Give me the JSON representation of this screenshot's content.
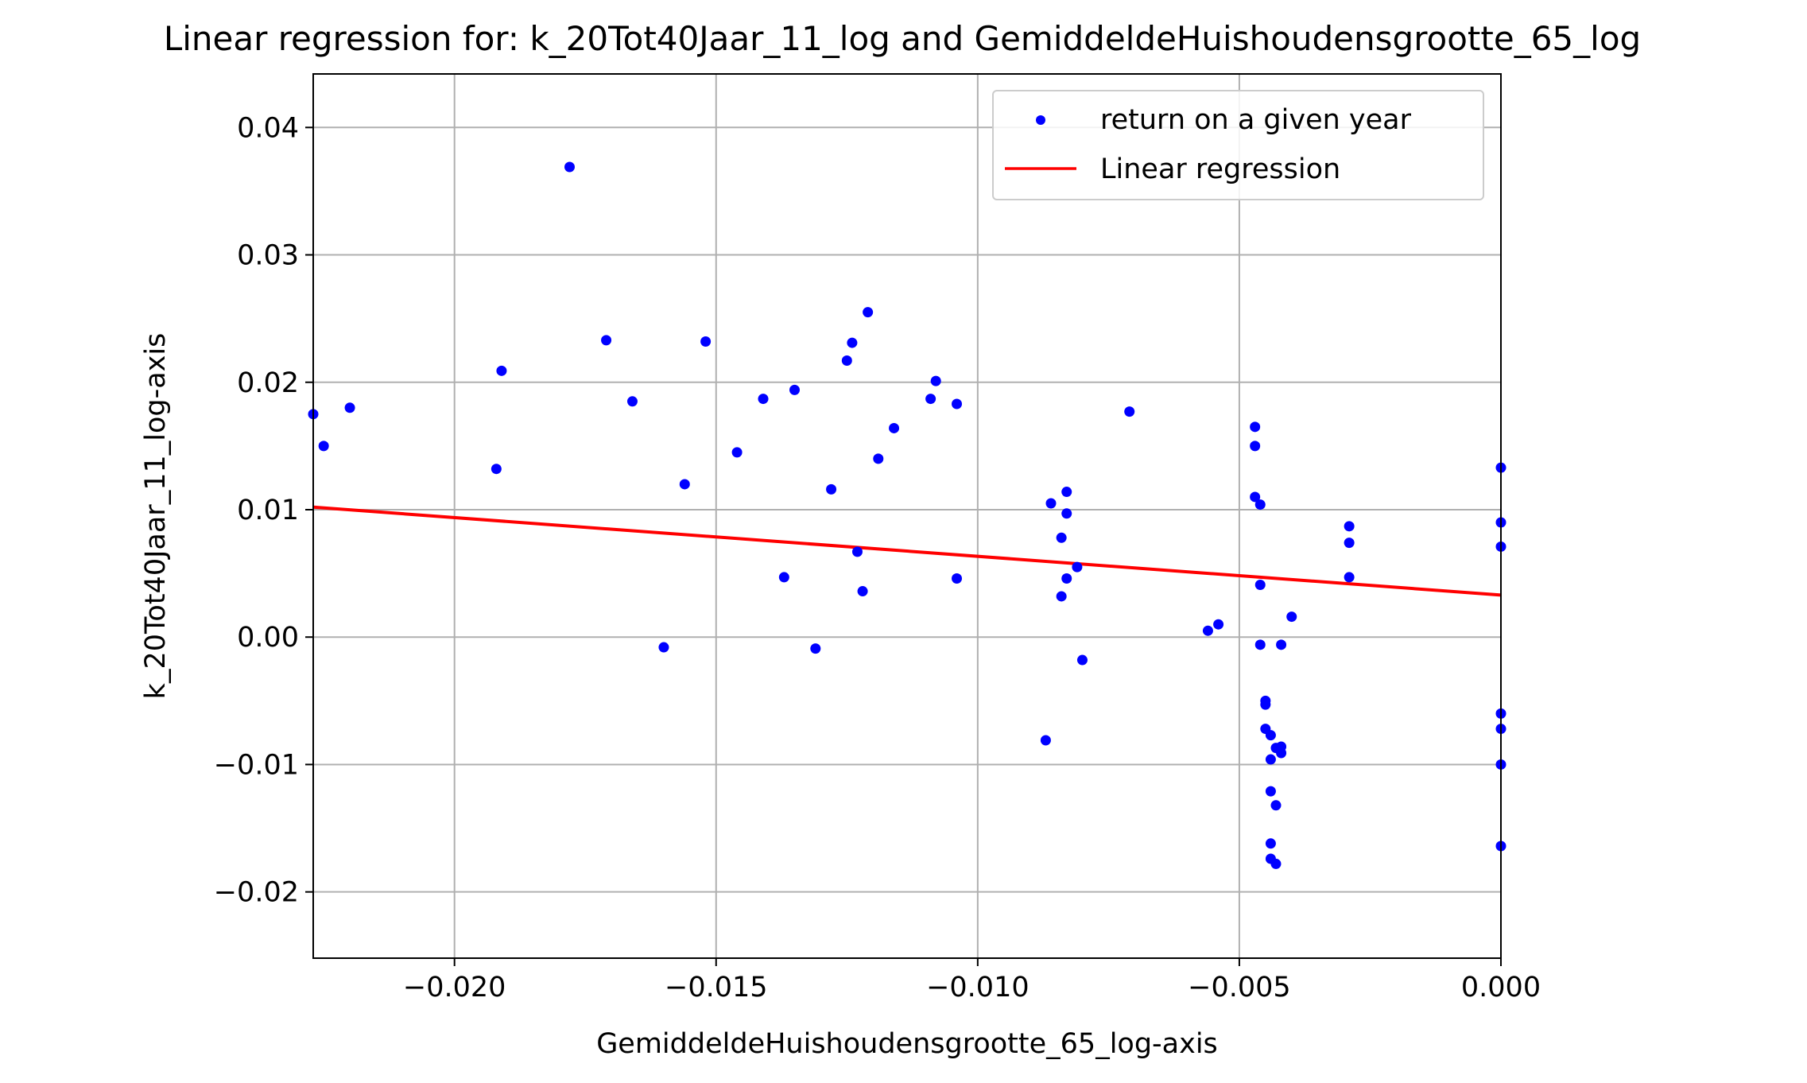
{
  "chart_data": {
    "type": "scatter",
    "title": "Linear regression for: k_20Tot40Jaar_11_log and GemiddeldeHuishoudensgrootte_65_log",
    "xlabel": "GemiddeldeHuishoudensgrootte_65_log-axis",
    "ylabel": "k_20Tot40Jaar_11_log-axis",
    "xlim": [
      -0.0227,
      0.0
    ],
    "ylim": [
      -0.0252,
      0.0442
    ],
    "x_ticks": [
      -0.02,
      -0.015,
      -0.01,
      -0.005,
      0.0
    ],
    "x_tick_labels": [
      "−0.020",
      "−0.015",
      "−0.010",
      "−0.005",
      "0.000"
    ],
    "y_ticks": [
      -0.02,
      -0.01,
      0.0,
      0.01,
      0.02,
      0.03,
      0.04
    ],
    "y_tick_labels": [
      "−0.02",
      "−0.01",
      "0.00",
      "0.01",
      "0.02",
      "0.03",
      "0.04"
    ],
    "grid": true,
    "legend_position": "top-right",
    "series": [
      {
        "name": "return on a given year",
        "kind": "scatter",
        "color": "#0000ff",
        "points": [
          [
            -0.0227,
            0.0175
          ],
          [
            -0.0225,
            0.015
          ],
          [
            -0.022,
            0.018
          ],
          [
            -0.0192,
            0.0132
          ],
          [
            -0.0191,
            0.0209
          ],
          [
            -0.0178,
            0.0369
          ],
          [
            -0.0171,
            0.0233
          ],
          [
            -0.0166,
            0.0185
          ],
          [
            -0.016,
            -0.0008
          ],
          [
            -0.0156,
            0.012
          ],
          [
            -0.0152,
            0.0232
          ],
          [
            -0.0146,
            0.0145
          ],
          [
            -0.0141,
            0.0187
          ],
          [
            -0.0137,
            0.0047
          ],
          [
            -0.0135,
            0.0194
          ],
          [
            -0.0131,
            -0.0009
          ],
          [
            -0.0128,
            0.0116
          ],
          [
            -0.0125,
            0.0217
          ],
          [
            -0.0124,
            0.0231
          ],
          [
            -0.0123,
            0.0067
          ],
          [
            -0.0122,
            0.0036
          ],
          [
            -0.0121,
            0.0255
          ],
          [
            -0.0119,
            0.014
          ],
          [
            -0.0116,
            0.0164
          ],
          [
            -0.0109,
            0.0187
          ],
          [
            -0.0108,
            0.0201
          ],
          [
            -0.0104,
            0.0183
          ],
          [
            -0.0104,
            0.0046
          ],
          [
            -0.0087,
            -0.0081
          ],
          [
            -0.0086,
            0.0105
          ],
          [
            -0.0084,
            0.0032
          ],
          [
            -0.0084,
            0.0078
          ],
          [
            -0.0083,
            0.0114
          ],
          [
            -0.0083,
            0.0097
          ],
          [
            -0.0083,
            0.0046
          ],
          [
            -0.0081,
            0.0055
          ],
          [
            -0.008,
            -0.0018
          ],
          [
            -0.0071,
            0.0177
          ],
          [
            -0.0056,
            0.0005
          ],
          [
            -0.0054,
            0.001
          ],
          [
            -0.0047,
            0.0165
          ],
          [
            -0.0047,
            0.015
          ],
          [
            -0.0047,
            0.011
          ],
          [
            -0.0046,
            0.0104
          ],
          [
            -0.0046,
            0.0041
          ],
          [
            -0.0046,
            -0.0006
          ],
          [
            -0.0045,
            -0.005
          ],
          [
            -0.0045,
            -0.0053
          ],
          [
            -0.0045,
            -0.0072
          ],
          [
            -0.0044,
            -0.0077
          ],
          [
            -0.0044,
            -0.0096
          ],
          [
            -0.0044,
            -0.0121
          ],
          [
            -0.0044,
            -0.0162
          ],
          [
            -0.0044,
            -0.0174
          ],
          [
            -0.0043,
            -0.0178
          ],
          [
            -0.0043,
            -0.0132
          ],
          [
            -0.0043,
            -0.0087
          ],
          [
            -0.0042,
            -0.0086
          ],
          [
            -0.0042,
            -0.0091
          ],
          [
            -0.0042,
            -0.0006
          ],
          [
            -0.004,
            0.0016
          ],
          [
            -0.0029,
            0.0087
          ],
          [
            -0.0029,
            0.0074
          ],
          [
            -0.0029,
            0.0047
          ],
          [
            0.0,
            0.0133
          ],
          [
            0.0,
            0.009
          ],
          [
            0.0,
            0.0071
          ],
          [
            0.0,
            -0.006
          ],
          [
            0.0,
            -0.0072
          ],
          [
            0.0,
            -0.01
          ],
          [
            0.0,
            -0.0164
          ]
        ]
      },
      {
        "name": "Linear regression",
        "kind": "line",
        "color": "#ff0000",
        "x": [
          -0.0227,
          0.0
        ],
        "y": [
          0.0102,
          0.0033
        ]
      }
    ]
  }
}
